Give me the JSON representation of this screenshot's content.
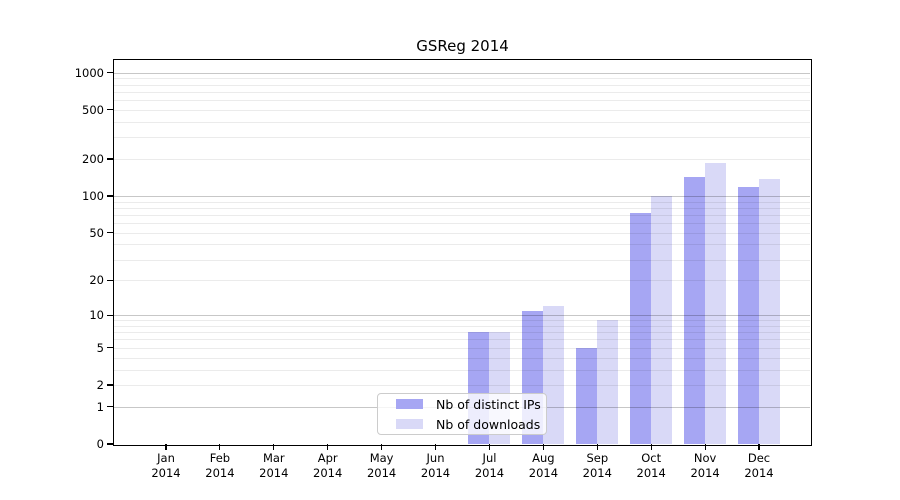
{
  "chart_data": {
    "type": "bar",
    "title": "GSReg 2014",
    "categories": [
      "Jan",
      "Feb",
      "Mar",
      "Apr",
      "May",
      "Jun",
      "Jul",
      "Aug",
      "Sep",
      "Oct",
      "Nov",
      "Dec"
    ],
    "category_year": "2014",
    "series": [
      {
        "name": "Nb of distinct IPs",
        "color": "#a6a6f3",
        "values": [
          0,
          0,
          0,
          0,
          0,
          0,
          7,
          11,
          5,
          73,
          143,
          118
        ]
      },
      {
        "name": "Nb of downloads",
        "color": "#d9d9f7",
        "values": [
          0,
          0,
          0,
          0,
          0,
          0,
          7,
          12,
          9,
          100,
          186,
          138
        ]
      }
    ],
    "xlabel": "",
    "ylabel": "",
    "y_scale": "log1p",
    "y_ticks": [
      0,
      1,
      2,
      5,
      10,
      20,
      50,
      100,
      200,
      500,
      1000
    ],
    "y_major_gridlines": [
      1,
      10,
      100,
      1000
    ],
    "y_minor_gridlines": [
      2,
      3,
      4,
      5,
      6,
      7,
      8,
      9,
      20,
      30,
      40,
      50,
      60,
      70,
      80,
      90,
      200,
      300,
      400,
      500,
      600,
      700,
      800,
      900
    ],
    "ylim": [
      0,
      1290
    ],
    "grid": "on",
    "grid_above_bars": true,
    "legend": {
      "position": "lower-center-inside",
      "entries": [
        "Nb of distinct IPs",
        "Nb of downloads"
      ]
    },
    "colors": {
      "bar_distinct_ips": "#a6a6f3",
      "bar_downloads": "#d9d9f7",
      "major_grid": "#c8c8c8",
      "minor_grid": "#ebebeb",
      "axis": "#000000",
      "background": "#ffffff",
      "text": "#000000"
    }
  }
}
